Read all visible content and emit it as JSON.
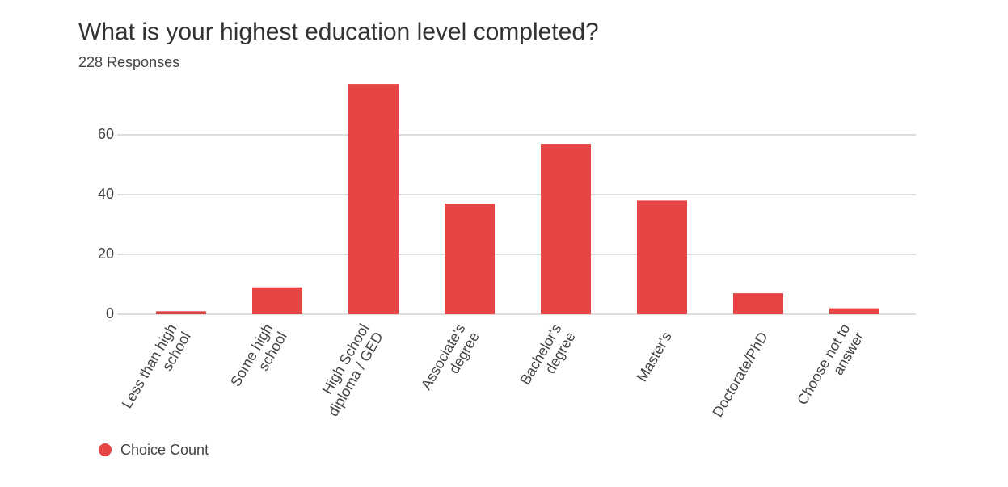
{
  "chart_data": {
    "type": "bar",
    "title": "What is your highest education level completed?",
    "subtitle": "228 Responses",
    "categories": [
      "Less than high school",
      "Some high school",
      "High School diploma / GED",
      "Associate's degree",
      "Bachelor's degree",
      "Master's",
      "Doctorate/PhD",
      "Choose not to answer"
    ],
    "series": [
      {
        "name": "Choice Count",
        "color": "#e64545",
        "values": [
          1,
          9,
          77,
          37,
          57,
          38,
          7,
          2
        ]
      }
    ],
    "ylim": [
      0,
      80
    ],
    "yticks": [
      0,
      20,
      40,
      60
    ],
    "grid": true,
    "legend": "bottom-left"
  }
}
